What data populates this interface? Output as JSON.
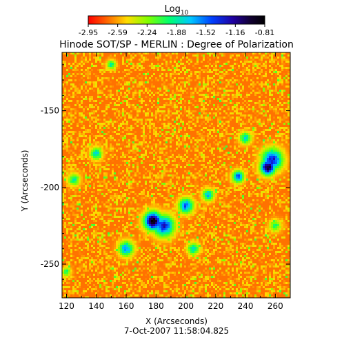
{
  "colorbar": {
    "title": "Log",
    "title_sub": "10",
    "ticks": [
      "-2.95",
      "-2.59",
      "-2.24",
      "-1.88",
      "-1.52",
      "-1.16",
      "-0.81"
    ]
  },
  "title": "Hinode SOT/SP - MERLIN : Degree of Polarization",
  "axes": {
    "xlabel": "X (Arcseconds)",
    "ylabel": "Y (Arcseconds)",
    "x_ticks": [
      "120",
      "140",
      "160",
      "180",
      "200",
      "220",
      "240",
      "260"
    ],
    "y_ticks": [
      "-150",
      "-200",
      "-250"
    ],
    "x_range": [
      117,
      270
    ],
    "y_range": [
      -272,
      -112
    ]
  },
  "timestamp": "7-Oct-2007 11:58:04.825",
  "map": {
    "quantity": "degree of polarization (log10)",
    "background_level": -2.7,
    "features": [
      {
        "x": 178,
        "y": -222,
        "level": -0.85,
        "extent": 6
      },
      {
        "x": 185,
        "y": -225,
        "level": -1.3,
        "extent": 7
      },
      {
        "x": 200,
        "y": -212,
        "level": -1.5,
        "extent": 5
      },
      {
        "x": 255,
        "y": -187,
        "level": -0.95,
        "extent": 5
      },
      {
        "x": 258,
        "y": -182,
        "level": -1.3,
        "extent": 7
      },
      {
        "x": 235,
        "y": -193,
        "level": -1.5,
        "extent": 4
      },
      {
        "x": 215,
        "y": -205,
        "level": -1.7,
        "extent": 4
      },
      {
        "x": 160,
        "y": -240,
        "level": -1.6,
        "extent": 5
      },
      {
        "x": 125,
        "y": -195,
        "level": -1.9,
        "extent": 4
      },
      {
        "x": 140,
        "y": -178,
        "level": -1.8,
        "extent": 4
      },
      {
        "x": 240,
        "y": -168,
        "level": -1.8,
        "extent": 4
      },
      {
        "x": 150,
        "y": -120,
        "level": -1.9,
        "extent": 3
      },
      {
        "x": 205,
        "y": -240,
        "level": -1.8,
        "extent": 4
      },
      {
        "x": 120,
        "y": -255,
        "level": -2.0,
        "extent": 3
      },
      {
        "x": 260,
        "y": -225,
        "level": -2.0,
        "extent": 4
      }
    ]
  },
  "colors": {
    "scale": [
      "#ff0000",
      "#ff7f00",
      "#ffff00",
      "#00ff00",
      "#00ffff",
      "#0000ff",
      "#4b0082",
      "#000000"
    ]
  }
}
